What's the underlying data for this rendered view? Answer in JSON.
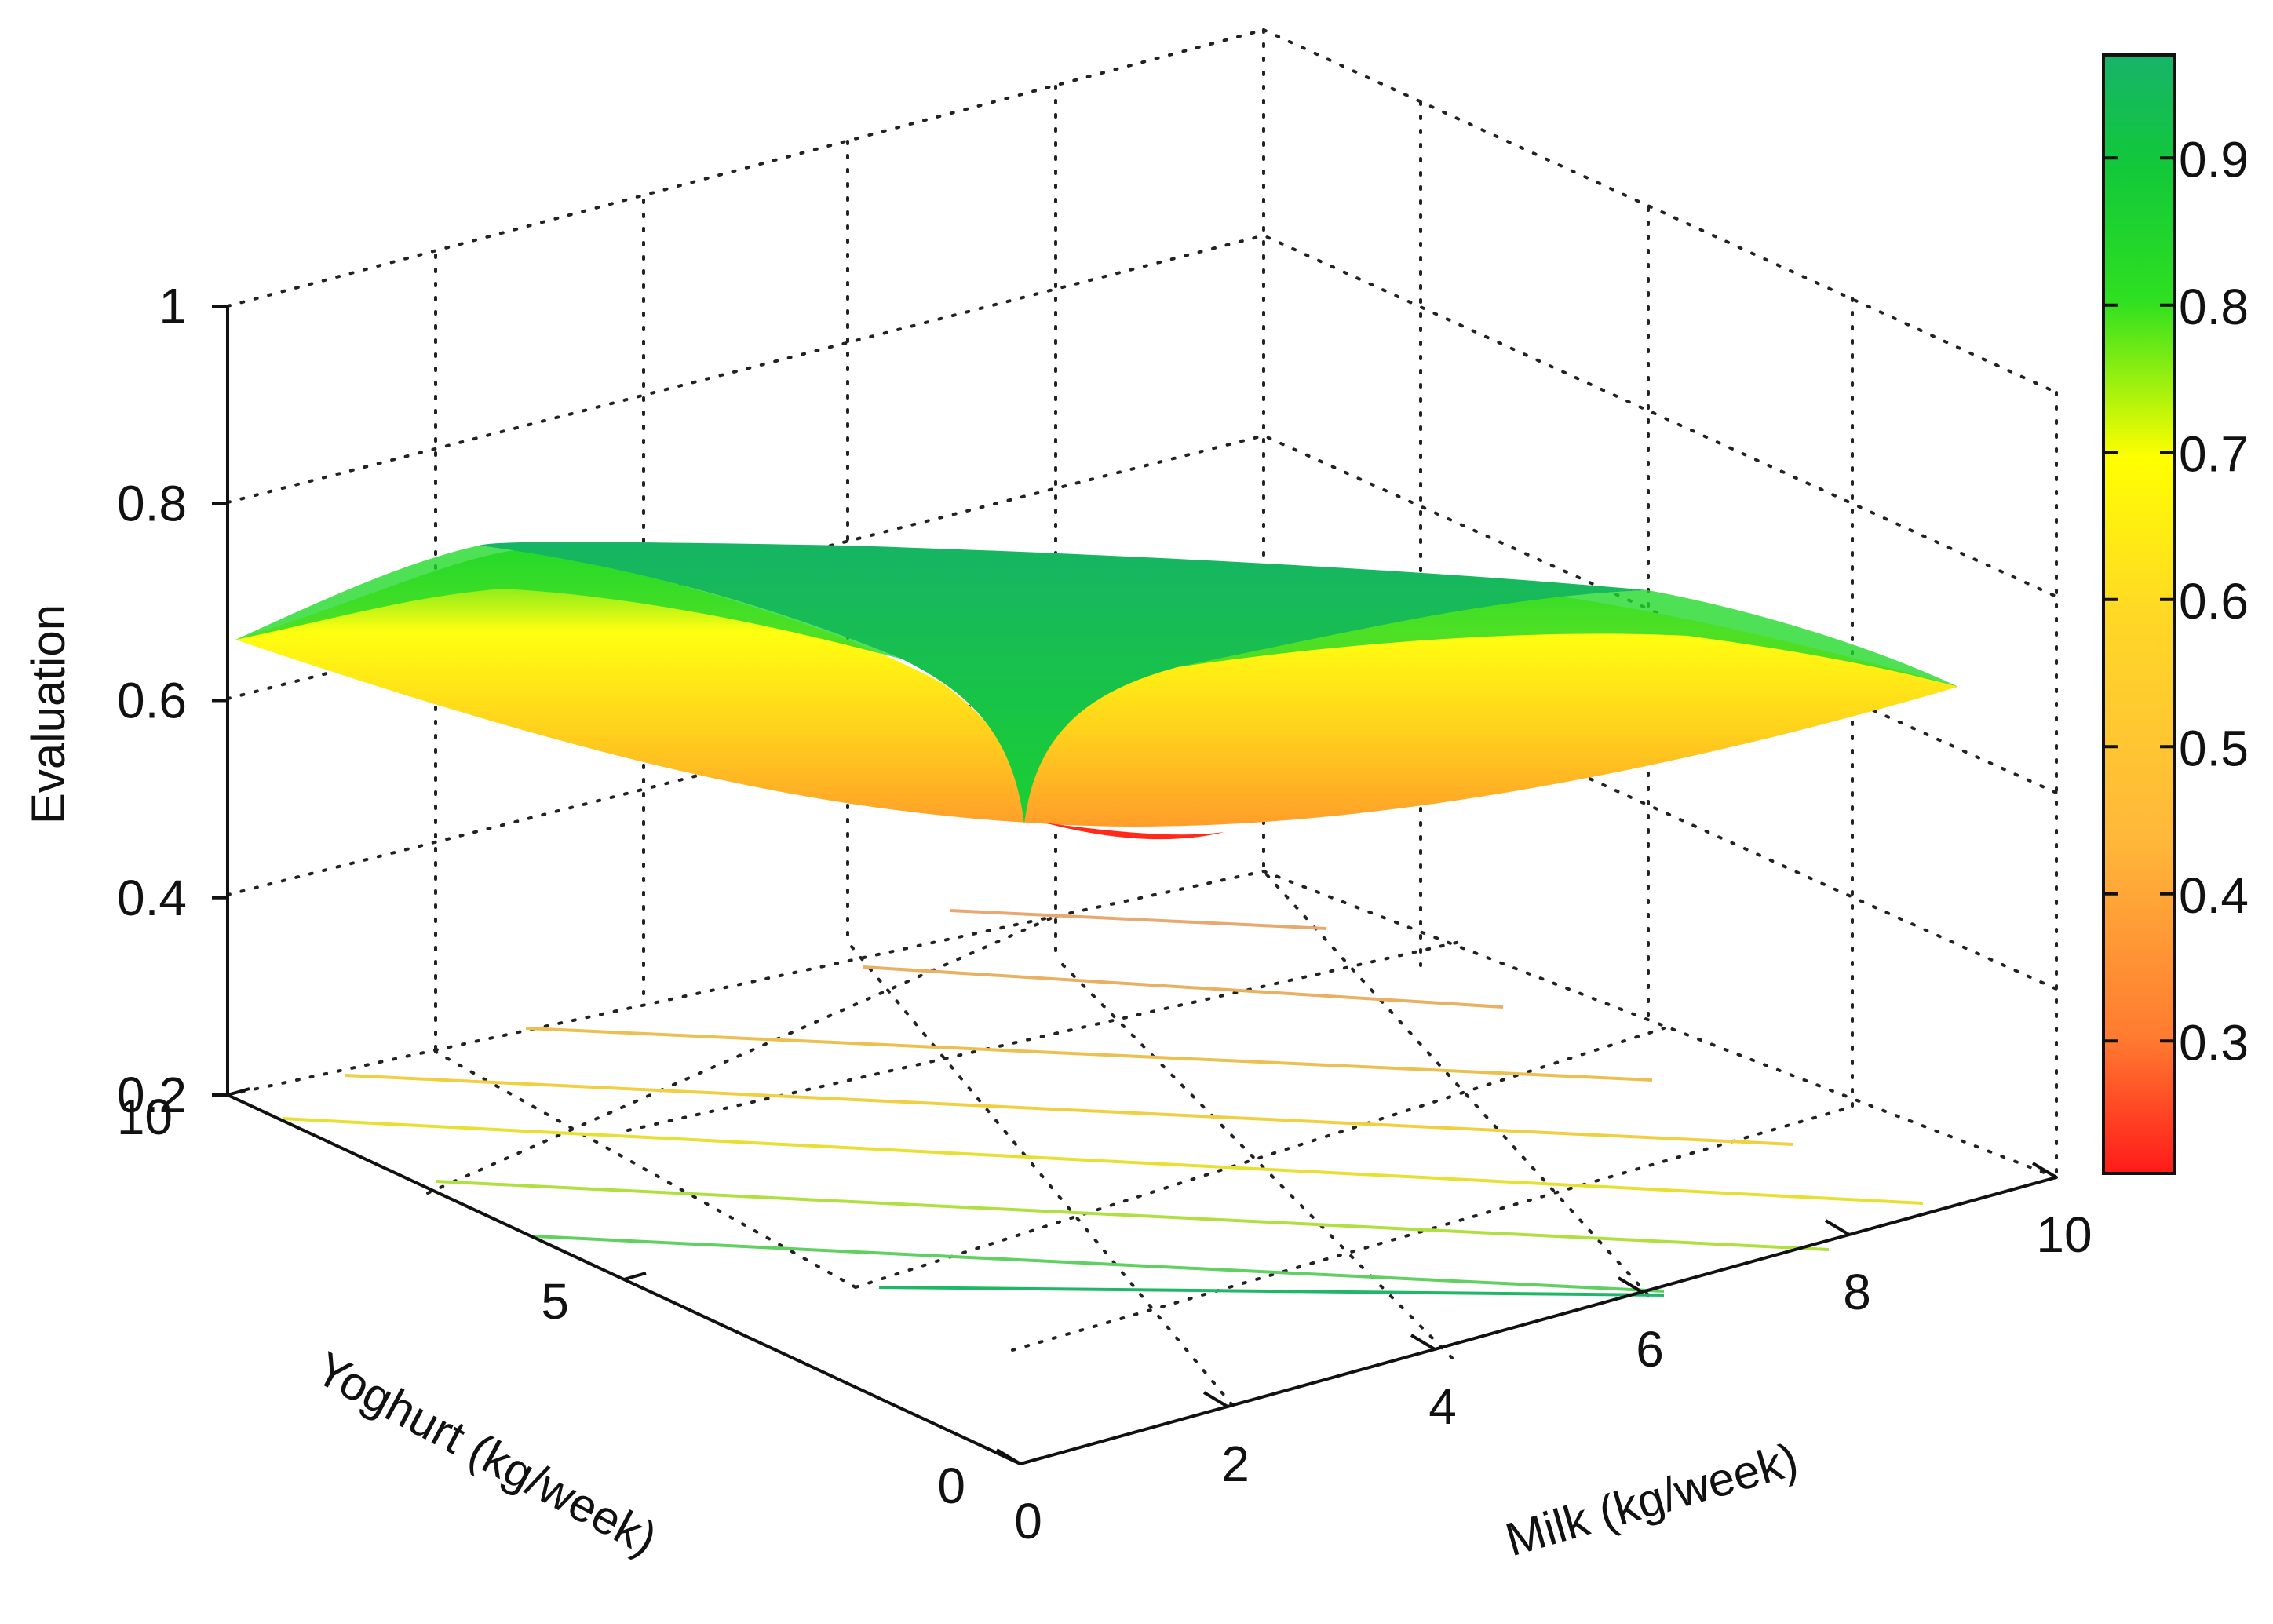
{
  "chart_data": {
    "type": "surface",
    "title": "",
    "xlabel": "Milk (kg/week)",
    "ylabel": "Yoghurt (kg/week)",
    "zlabel": "Evaluation",
    "x_ticks": [
      "0",
      "2",
      "4",
      "6",
      "8",
      "10"
    ],
    "y_ticks": [
      "0",
      "5",
      "10"
    ],
    "z_ticks": [
      "0.2",
      "0.4",
      "0.6",
      "0.8",
      "1"
    ],
    "colorbar_ticks": [
      "0.3",
      "0.4",
      "0.5",
      "0.6",
      "0.7",
      "0.8",
      "0.9"
    ],
    "xlim": [
      0,
      10
    ],
    "ylim": [
      0,
      10
    ],
    "zlim": [
      0.2,
      1.0
    ],
    "colorbar_range": [
      0.21,
      0.97
    ],
    "grid": true,
    "colormap": [
      "#ff1a1a",
      "#ffb030",
      "#ffe020",
      "#ffff00",
      "#00e020",
      "#16b464"
    ],
    "surface_samples": {
      "description_points": [
        {
          "milk": 0,
          "yoghurt": 0,
          "evaluation": 0.43
        },
        {
          "milk": 0,
          "yoghurt": 10,
          "evaluation": 0.68
        },
        {
          "milk": 10,
          "yoghurt": 0,
          "evaluation": 0.67
        },
        {
          "milk": 10,
          "yoghurt": 10,
          "evaluation": 0.77
        },
        {
          "milk": 5,
          "yoghurt": 5,
          "evaluation": 0.78
        }
      ]
    },
    "contour_levels": [
      0.38,
      0.42,
      0.46,
      0.5,
      0.54,
      0.58,
      0.62,
      0.66
    ]
  }
}
